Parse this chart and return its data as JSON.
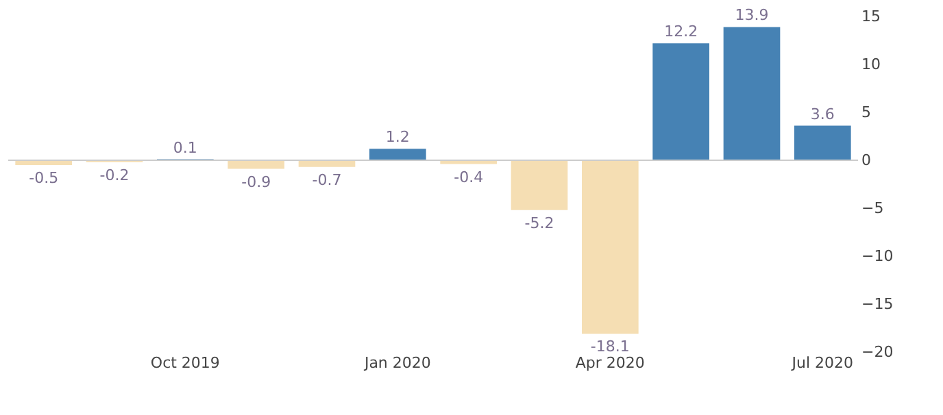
{
  "chart_data": {
    "type": "bar",
    "categories": [
      null,
      null,
      "Oct 2019",
      null,
      null,
      "Jan 2020",
      null,
      null,
      "Apr 2020",
      null,
      null,
      "Jul 2020"
    ],
    "values": [
      -0.5,
      -0.2,
      0.1,
      -0.9,
      -0.7,
      1.2,
      -0.4,
      -5.2,
      -18.1,
      12.2,
      13.9,
      3.6
    ],
    "colors": [
      "#f5deb3",
      "#f5deb3",
      "#4682b4",
      "#f5deb3",
      "#f5deb3",
      "#4682b4",
      "#f5deb3",
      "#f5deb3",
      "#f5deb3",
      "#4682b4",
      "#4682b4",
      "#4682b4"
    ],
    "ylim": [
      -20,
      15
    ],
    "yticks": [
      -20,
      -15,
      -10,
      -5,
      0,
      5,
      10,
      15
    ],
    "data_labels": true,
    "grid": false,
    "ref_lines": [
      {
        "axis": "y",
        "value": 0,
        "color": "#cccccc"
      }
    ]
  }
}
